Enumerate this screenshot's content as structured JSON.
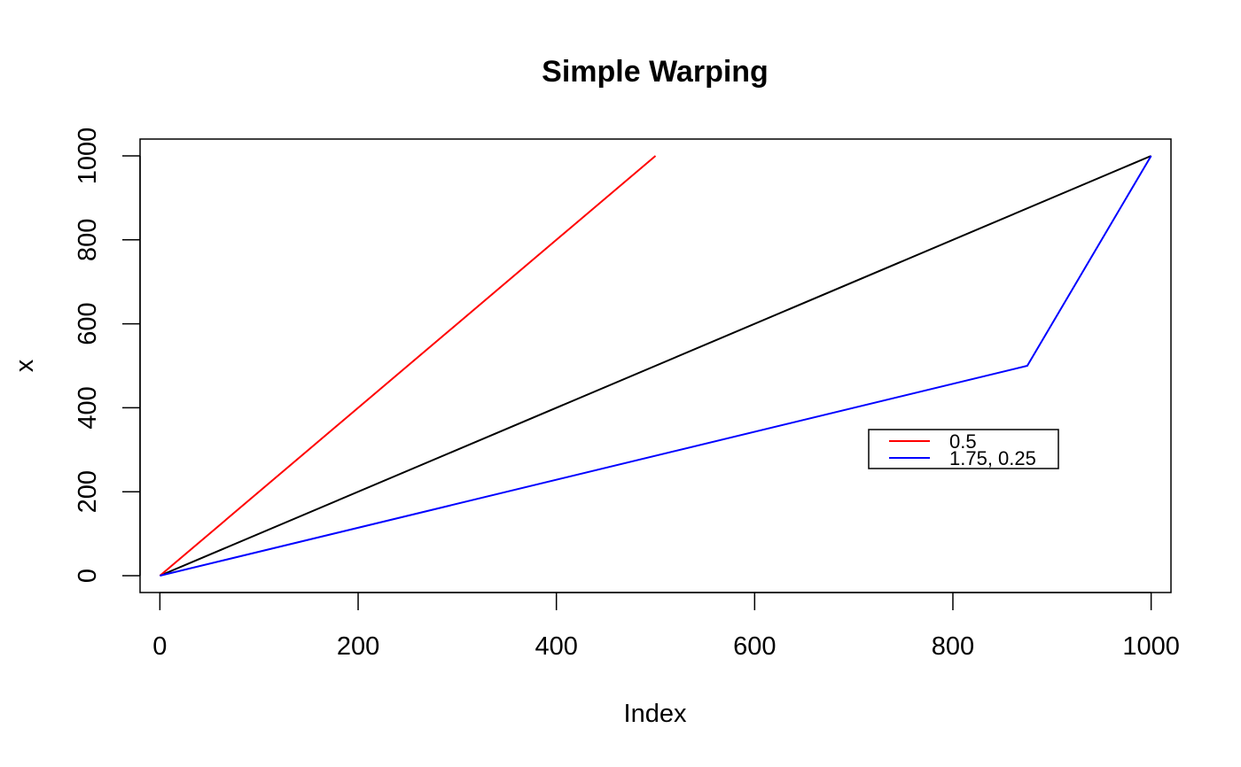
{
  "chart_data": {
    "type": "line",
    "title": "Simple Warping",
    "xlabel": "Index",
    "ylabel": "x",
    "xlim": [
      -20,
      1020
    ],
    "ylim": [
      -40,
      1040
    ],
    "x_ticks": [
      0,
      200,
      400,
      600,
      800,
      1000
    ],
    "y_ticks": [
      0,
      200,
      400,
      600,
      800,
      1000
    ],
    "grid": false,
    "legend_position": "right",
    "series": [
      {
        "color": "#000000",
        "points": [
          [
            0,
            0
          ],
          [
            1000,
            1000
          ]
        ]
      },
      {
        "name": "0.5",
        "color": "#ff0000",
        "points": [
          [
            0,
            0
          ],
          [
            500,
            1000
          ]
        ]
      },
      {
        "name": "1.75, 0.25",
        "color": "#0000ff",
        "points": [
          [
            0,
            0
          ],
          [
            875,
            500
          ],
          [
            1000,
            1000
          ]
        ]
      }
    ]
  }
}
